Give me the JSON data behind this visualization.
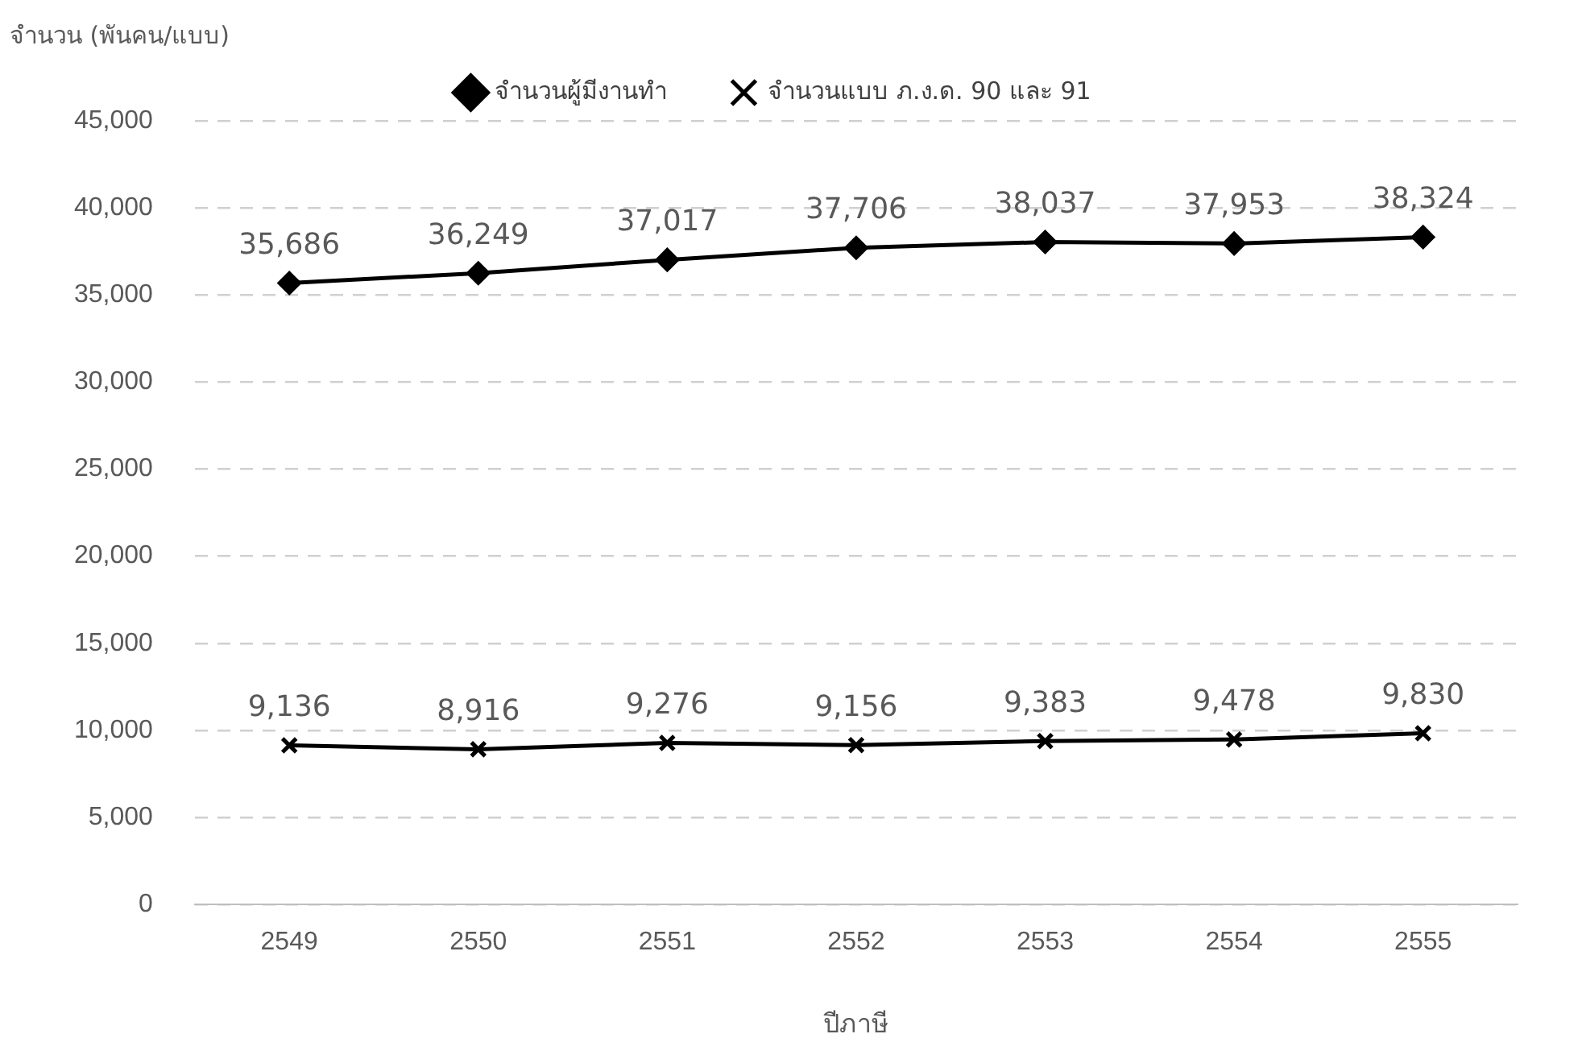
{
  "chart_data": {
    "type": "line",
    "xlabel": "ปีภาษี",
    "ylabel": "จำนวน (พันคน/แบบ)",
    "categories": [
      "2549",
      "2550",
      "2551",
      "2552",
      "2553",
      "2554",
      "2555"
    ],
    "series": [
      {
        "name": "จำนวนผู้มีงานทำ",
        "color": "#000000",
        "marker": "diamond",
        "values": [
          35686,
          36249,
          37017,
          37706,
          38037,
          37953,
          38324
        ],
        "value_labels": [
          "35,686",
          "36,249",
          "37,017",
          "37,706",
          "38,037",
          "37,953",
          "38,324"
        ]
      },
      {
        "name": "จำนวนแบบ ภ.ง.ด. 90 และ 91",
        "color": "#000000",
        "marker": "cross",
        "values": [
          9136,
          8916,
          9276,
          9156,
          9383,
          9478,
          9830
        ],
        "value_labels": [
          "9,136",
          "8,916",
          "9,276",
          "9,156",
          "9,383",
          "9,478",
          "9,830"
        ]
      }
    ],
    "ylim": [
      0,
      45000
    ],
    "yticks": [
      0,
      {
        "value": 5000,
        "label": "5,000"
      },
      {
        "value": 10000,
        "label": "10,000"
      },
      {
        "value": 15000,
        "label": "15,000"
      },
      {
        "value": 20000,
        "label": "20,000"
      },
      {
        "value": 25000,
        "label": "25,000"
      },
      {
        "value": 30000,
        "label": "30,000"
      },
      {
        "value": 35000,
        "label": "35,000"
      },
      {
        "value": 40000,
        "label": "40,000"
      },
      {
        "value": 45000,
        "label": "45,000"
      }
    ],
    "grid": "y",
    "legend": "top",
    "line_style": "solid"
  }
}
